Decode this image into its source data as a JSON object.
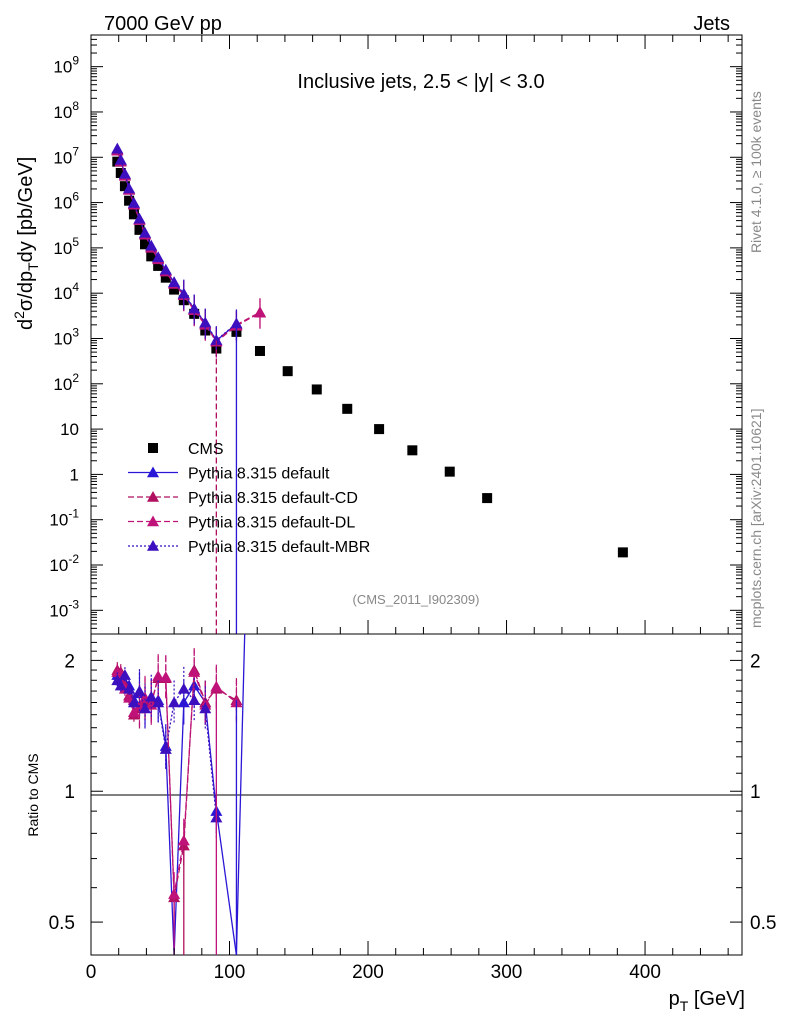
{
  "header": {
    "left": "7000 GeV pp",
    "right": "Jets"
  },
  "side": {
    "rivet": "Rivet 4.1.0, ≥ 100k events",
    "mcplots": "mcplots.cern.ch [arXiv:2401.10621]"
  },
  "colors": {
    "cms": "#000000",
    "default": "#2a16d6",
    "cd": "#b0105f",
    "dl": "#c0137a",
    "mbr": "#3c0fbf"
  },
  "chart_data": [
    {
      "type": "scatter",
      "title": "Inclusive jets, 2.5 < |y| < 3.0",
      "analysis_label": "(CMS_2011_I902309)",
      "xlabel": "p_T [GeV]",
      "ylabel": "d²σ/dp_T dy [pb/GeV]",
      "xscale": "linear",
      "yscale": "log",
      "xlim": [
        0,
        470
      ],
      "ylim": [
        0.0003,
        5000000000
      ],
      "x_ticks": [
        "0",
        "100",
        "200",
        "300",
        "400"
      ],
      "y_ticks": [
        "10^-3",
        "10^-2",
        "10^-1",
        "1",
        "10",
        "10^2",
        "10^3",
        "10^4",
        "10^5",
        "10^6",
        "10^7",
        "10^8",
        "10^9"
      ],
      "legend": [
        "CMS",
        "Pythia 8.315 default",
        "Pythia 8.315 default-CD",
        "Pythia 8.315 default-DL",
        "Pythia 8.315 default-MBR"
      ],
      "series": [
        {
          "name": "CMS",
          "x": [
            19,
            21.5,
            24.5,
            27.5,
            31,
            35,
            39,
            43.5,
            48.5,
            54,
            60,
            67,
            74.5,
            82.5,
            90.5,
            105,
            122,
            142,
            163,
            185,
            208,
            232,
            259,
            286,
            384
          ],
          "y": [
            8000000,
            4500000,
            2300000,
            1100000,
            550000,
            250000,
            120000,
            65000,
            40000,
            22000,
            12000,
            7000,
            3500,
            1500,
            600,
            1400,
            530,
            190,
            75,
            28,
            10,
            3.4,
            1.15,
            0.3,
            0.019
          ]
        },
        {
          "name": "Pythia 8.315 default",
          "x": [
            19,
            21.5,
            24.5,
            27.5,
            31,
            35,
            39,
            43.5,
            48.5,
            54,
            60,
            67,
            74.5,
            82.5,
            90.5,
            105
          ],
          "y": [
            15000000,
            8500000,
            4200000,
            2000000,
            950000,
            430000,
            210000,
            110000,
            60000,
            32000,
            17000,
            9500,
            4500,
            2200,
            900,
            2100
          ]
        },
        {
          "name": "Pythia 8.315 default-CD",
          "x": [
            19,
            21.5,
            24.5,
            27.5,
            31,
            35,
            39,
            43.5,
            48.5,
            54,
            60,
            67,
            74.5,
            82.5,
            90.5,
            105,
            122
          ],
          "y": [
            14500000,
            8200000,
            4000000,
            1950000,
            920000,
            420000,
            200000,
            105000,
            58000,
            31000,
            16500,
            9200,
            4300,
            2100,
            880,
            2000,
            3800
          ]
        },
        {
          "name": "Pythia 8.315 default-DL",
          "x": [
            19,
            21.5,
            24.5,
            27.5,
            31,
            35,
            39,
            43.5,
            48.5,
            54,
            60,
            67,
            74.5,
            82.5,
            90.5,
            105,
            122
          ],
          "y": [
            14000000,
            8000000,
            3900000,
            1900000,
            900000,
            410000,
            195000,
            100000,
            56000,
            30000,
            16000,
            9000,
            4200,
            2000,
            850,
            1900,
            3700
          ]
        },
        {
          "name": "Pythia 8.315 default-MBR",
          "x": [
            19,
            21.5,
            24.5,
            27.5,
            31,
            35,
            39,
            43.5,
            48.5,
            54,
            60,
            67,
            74.5,
            82.5,
            90.5,
            105
          ],
          "y": [
            15500000,
            8800000,
            4300000,
            2050000,
            980000,
            440000,
            215000,
            112000,
            62000,
            33000,
            17500,
            9800,
            4600,
            2250,
            920,
            2150
          ]
        }
      ]
    },
    {
      "type": "line",
      "title": "",
      "xlabel": "p_T [GeV]",
      "ylabel": "Ratio to CMS",
      "xscale": "linear",
      "yscale": "log",
      "xlim": [
        0,
        470
      ],
      "ylim": [
        0.42,
        2.3
      ],
      "y_ticks": [
        "0.5",
        "1",
        "2"
      ],
      "reference_line": 1,
      "series": [
        {
          "name": "Pythia 8.315 default",
          "x": [
            19,
            21.5,
            24.5,
            27.5,
            31,
            35,
            39,
            43.5,
            48.5,
            54,
            60,
            67,
            74.5,
            82.5,
            90.5,
            105,
            111
          ],
          "y": [
            1.85,
            1.8,
            1.78,
            1.75,
            1.62,
            1.68,
            1.58,
            1.62,
            1.62,
            1.27,
            0.3,
            1.6,
            1.75,
            1.6,
            0.9,
            0.2,
            2.3
          ]
        },
        {
          "name": "Pythia 8.315 default-CD",
          "x": [
            19,
            21.5,
            24.5,
            27.5,
            31,
            35,
            39,
            43.5,
            48.5,
            54,
            60,
            67,
            74.5,
            82.5,
            90.5,
            105
          ],
          "y": [
            1.9,
            1.88,
            1.75,
            1.66,
            1.5,
            1.55,
            1.62,
            1.6,
            1.82,
            1.82,
            0.57,
            0.75,
            1.9,
            1.6,
            1.72,
            1.62
          ]
        },
        {
          "name": "Pythia 8.315 default-DL",
          "x": [
            19,
            21.5,
            24.5,
            27.5,
            31,
            35,
            39,
            43.5,
            48.5,
            54,
            60,
            67,
            74.5,
            82.5,
            90.5,
            105
          ],
          "y": [
            1.88,
            1.86,
            1.72,
            1.64,
            1.52,
            1.57,
            1.64,
            1.58,
            1.84,
            1.83,
            0.58,
            0.77,
            1.88,
            1.58,
            1.74,
            1.6
          ]
        },
        {
          "name": "Pythia 8.315 default-MBR",
          "x": [
            19,
            21.5,
            24.5,
            27.5,
            31,
            35,
            39,
            43.5,
            48.5,
            54,
            60,
            67,
            74.5,
            82.5,
            90.5
          ],
          "y": [
            1.8,
            1.75,
            1.85,
            1.72,
            1.6,
            1.7,
            1.55,
            1.65,
            1.6,
            1.25,
            1.6,
            1.72,
            1.62,
            1.55,
            0.87
          ]
        }
      ]
    }
  ]
}
